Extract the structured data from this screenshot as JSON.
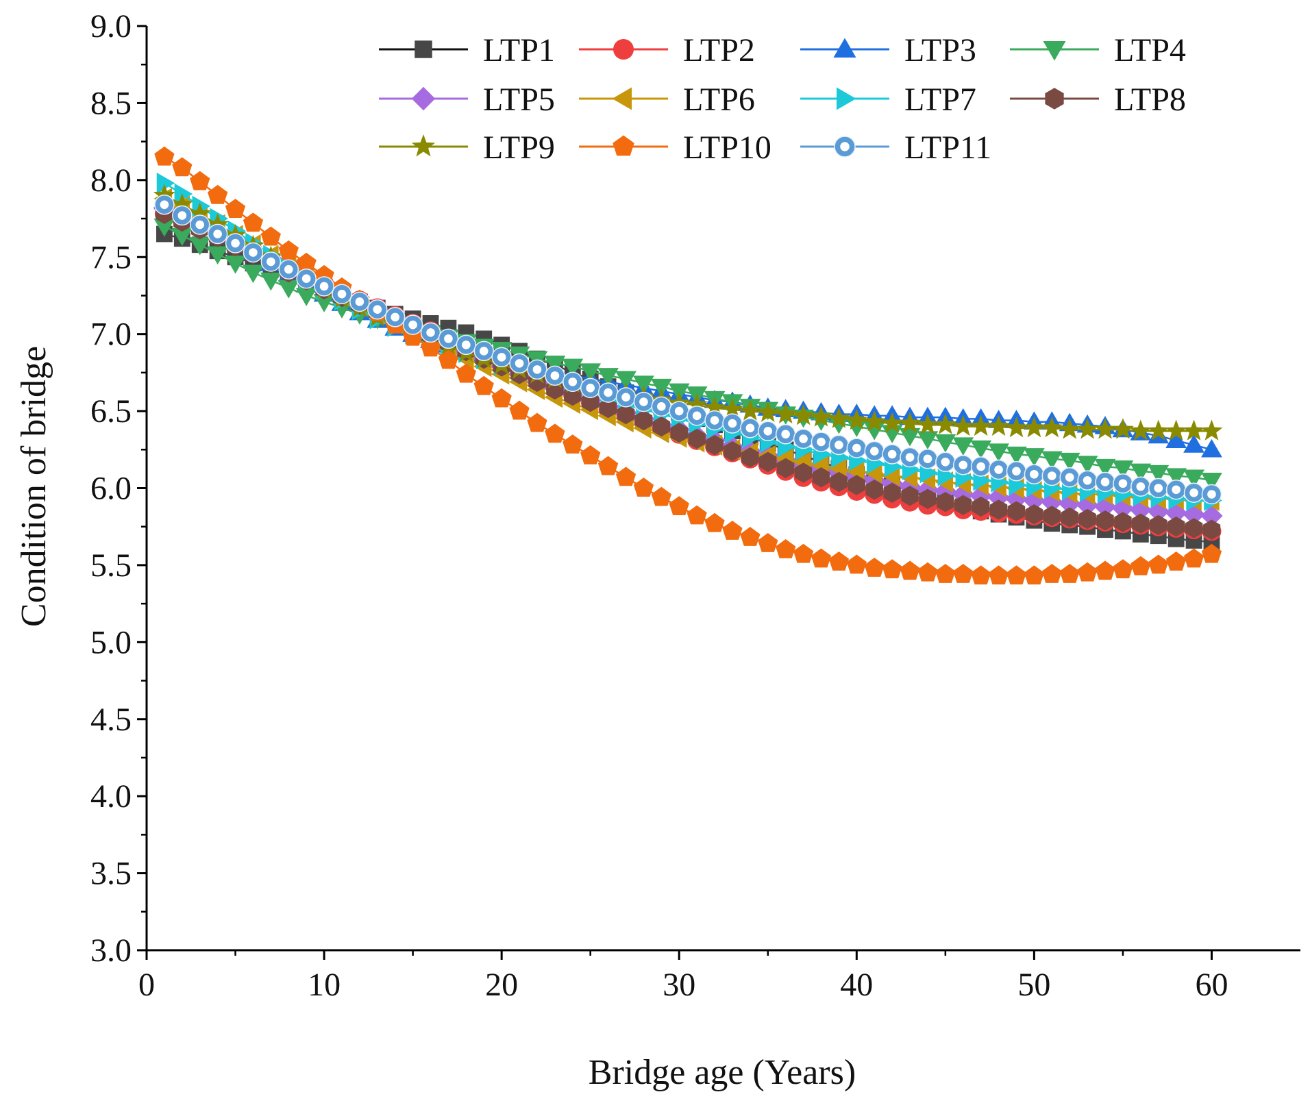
{
  "chart_data": {
    "type": "line",
    "title": "",
    "xlabel": "Bridge age (Years)",
    "ylabel": "Condition of bridge",
    "xlim": [
      0,
      65
    ],
    "ylim": [
      3.0,
      9.0
    ],
    "x_ticks": [
      0,
      10,
      20,
      30,
      40,
      50,
      60
    ],
    "y_ticks": [
      "3.0",
      "3.5",
      "4.0",
      "4.5",
      "5.0",
      "5.5",
      "6.0",
      "6.5",
      "7.0",
      "7.5",
      "8.0",
      "8.5",
      "9.0"
    ],
    "legend_position": "top-right",
    "series": [
      {
        "name": "LTP1",
        "color": "#474747",
        "marker": "square",
        "age_start": 1,
        "age_step": 1,
        "values": [
          7.65,
          7.62,
          7.58,
          7.54,
          7.5,
          7.46,
          7.42,
          7.38,
          7.33,
          7.29,
          7.25,
          7.21,
          7.17,
          7.13,
          7.1,
          7.07,
          7.04,
          7.01,
          6.97,
          6.93,
          6.89,
          6.84,
          6.8,
          6.75,
          6.71,
          6.66,
          6.62,
          6.57,
          6.53,
          6.49,
          6.45,
          6.41,
          6.37,
          6.33,
          6.29,
          6.25,
          6.21,
          6.17,
          6.13,
          6.09,
          6.05,
          6.02,
          5.98,
          5.95,
          5.91,
          5.88,
          5.85,
          5.83,
          5.81,
          5.79,
          5.77,
          5.76,
          5.75,
          5.73,
          5.72,
          5.7,
          5.69,
          5.67,
          5.66,
          5.65
        ]
      },
      {
        "name": "LTP2",
        "color": "#ef3e3e",
        "marker": "circle",
        "age_start": 1,
        "age_step": 1,
        "values": [
          7.78,
          7.74,
          7.69,
          7.64,
          7.59,
          7.54,
          7.49,
          7.44,
          7.38,
          7.33,
          7.27,
          7.22,
          7.17,
          7.12,
          7.07,
          7.02,
          6.97,
          6.92,
          6.86,
          6.81,
          6.76,
          6.71,
          6.66,
          6.61,
          6.56,
          6.51,
          6.47,
          6.43,
          6.39,
          6.35,
          6.31,
          6.27,
          6.23,
          6.19,
          6.15,
          6.11,
          6.07,
          6.04,
          6.01,
          5.98,
          5.96,
          5.93,
          5.91,
          5.89,
          5.88,
          5.86,
          5.85,
          5.84,
          5.83,
          5.82,
          5.81,
          5.8,
          5.79,
          5.78,
          5.77,
          5.76,
          5.75,
          5.74,
          5.73,
          5.72
        ]
      },
      {
        "name": "LTP3",
        "color": "#1f6fe0",
        "marker": "triangle-up",
        "age_start": 1,
        "age_step": 1,
        "values": [
          7.86,
          7.81,
          7.74,
          7.67,
          7.6,
          7.53,
          7.46,
          7.39,
          7.32,
          7.26,
          7.2,
          7.14,
          7.09,
          7.04,
          7.0,
          6.96,
          6.93,
          6.9,
          6.87,
          6.84,
          6.81,
          6.78,
          6.75,
          6.73,
          6.71,
          6.69,
          6.67,
          6.65,
          6.63,
          6.61,
          6.59,
          6.57,
          6.56,
          6.54,
          6.52,
          6.51,
          6.5,
          6.49,
          6.48,
          6.48,
          6.47,
          6.47,
          6.46,
          6.46,
          6.46,
          6.45,
          6.45,
          6.44,
          6.44,
          6.43,
          6.43,
          6.42,
          6.41,
          6.4,
          6.38,
          6.36,
          6.34,
          6.31,
          6.28,
          6.25
        ]
      },
      {
        "name": "LTP4",
        "color": "#3aaa5c",
        "marker": "triangle-down",
        "age_start": 1,
        "age_step": 1,
        "values": [
          7.7,
          7.64,
          7.58,
          7.52,
          7.46,
          7.4,
          7.35,
          7.3,
          7.25,
          7.21,
          7.17,
          7.13,
          7.1,
          7.07,
          7.04,
          7.01,
          6.98,
          6.95,
          6.92,
          6.9,
          6.87,
          6.84,
          6.81,
          6.79,
          6.76,
          6.73,
          6.71,
          6.68,
          6.66,
          6.63,
          6.61,
          6.58,
          6.56,
          6.53,
          6.51,
          6.48,
          6.46,
          6.44,
          6.42,
          6.4,
          6.38,
          6.36,
          6.34,
          6.32,
          6.3,
          6.28,
          6.26,
          6.24,
          6.22,
          6.21,
          6.19,
          6.18,
          6.16,
          6.14,
          6.13,
          6.11,
          6.1,
          6.08,
          6.07,
          6.05
        ]
      },
      {
        "name": "LTP5",
        "color": "#a66be0",
        "marker": "diamond",
        "age_start": 1,
        "age_step": 1,
        "values": [
          7.82,
          7.78,
          7.73,
          7.67,
          7.61,
          7.55,
          7.49,
          7.43,
          7.37,
          7.31,
          7.25,
          7.19,
          7.14,
          7.09,
          7.04,
          6.99,
          6.94,
          6.89,
          6.84,
          6.79,
          6.74,
          6.69,
          6.65,
          6.61,
          6.57,
          6.53,
          6.49,
          6.45,
          6.41,
          6.38,
          6.34,
          6.31,
          6.27,
          6.24,
          6.21,
          6.18,
          6.15,
          6.12,
          6.1,
          6.07,
          6.05,
          6.03,
          6.01,
          5.99,
          5.98,
          5.96,
          5.95,
          5.94,
          5.93,
          5.92,
          5.91,
          5.9,
          5.89,
          5.88,
          5.87,
          5.86,
          5.85,
          5.84,
          5.83,
          5.82
        ]
      },
      {
        "name": "LTP6",
        "color": "#c8960a",
        "marker": "triangle-left",
        "age_start": 1,
        "age_step": 1,
        "values": [
          7.88,
          7.83,
          7.77,
          7.71,
          7.64,
          7.58,
          7.51,
          7.45,
          7.38,
          7.32,
          7.25,
          7.19,
          7.13,
          7.07,
          7.01,
          6.95,
          6.9,
          6.84,
          6.79,
          6.74,
          6.69,
          6.64,
          6.59,
          6.55,
          6.51,
          6.47,
          6.43,
          6.39,
          6.36,
          6.33,
          6.3,
          6.28,
          6.25,
          6.23,
          6.21,
          6.19,
          6.17,
          6.15,
          6.13,
          6.11,
          6.1,
          6.08,
          6.07,
          6.06,
          6.04,
          6.03,
          6.02,
          6.01,
          6.0,
          5.99,
          5.98,
          5.97,
          5.96,
          5.96,
          5.95,
          5.94,
          5.93,
          5.93,
          5.92,
          5.92
        ]
      },
      {
        "name": "LTP7",
        "color": "#1cc9d9",
        "marker": "triangle-right",
        "age_start": 1,
        "age_step": 1,
        "values": [
          7.98,
          7.91,
          7.83,
          7.75,
          7.67,
          7.59,
          7.51,
          7.43,
          7.36,
          7.29,
          7.22,
          7.16,
          7.1,
          7.05,
          7.0,
          6.96,
          6.92,
          6.88,
          6.84,
          6.8,
          6.76,
          6.72,
          6.68,
          6.64,
          6.61,
          6.57,
          6.54,
          6.51,
          6.48,
          6.45,
          6.42,
          6.39,
          6.36,
          6.33,
          6.3,
          6.27,
          6.25,
          6.22,
          6.2,
          6.18,
          6.16,
          6.14,
          6.12,
          6.1,
          6.08,
          6.07,
          6.05,
          6.04,
          6.02,
          6.01,
          6.0,
          5.99,
          5.98,
          5.97,
          5.96,
          5.95,
          5.94,
          5.93,
          5.92,
          5.92
        ]
      },
      {
        "name": "LTP8",
        "color": "#7a4a42",
        "marker": "hexagon",
        "age_start": 1,
        "age_step": 1,
        "values": [
          7.78,
          7.73,
          7.68,
          7.63,
          7.57,
          7.52,
          7.46,
          7.4,
          7.35,
          7.29,
          7.24,
          7.19,
          7.14,
          7.09,
          7.04,
          6.99,
          6.94,
          6.89,
          6.84,
          6.79,
          6.74,
          6.69,
          6.64,
          6.6,
          6.56,
          6.52,
          6.48,
          6.44,
          6.4,
          6.36,
          6.32,
          6.28,
          6.24,
          6.2,
          6.17,
          6.13,
          6.1,
          6.07,
          6.04,
          6.02,
          5.99,
          5.97,
          5.95,
          5.93,
          5.91,
          5.89,
          5.88,
          5.86,
          5.85,
          5.83,
          5.82,
          5.81,
          5.8,
          5.79,
          5.78,
          5.77,
          5.76,
          5.75,
          5.74,
          5.73
        ]
      },
      {
        "name": "LTP9",
        "color": "#8a8a00",
        "marker": "star",
        "age_start": 1,
        "age_step": 1,
        "values": [
          7.9,
          7.84,
          7.78,
          7.71,
          7.64,
          7.57,
          7.5,
          7.43,
          7.36,
          7.29,
          7.23,
          7.17,
          7.11,
          7.06,
          7.01,
          6.96,
          6.92,
          6.88,
          6.84,
          6.8,
          6.77,
          6.74,
          6.71,
          6.68,
          6.66,
          6.63,
          6.61,
          6.59,
          6.57,
          6.55,
          6.54,
          6.52,
          6.51,
          6.5,
          6.49,
          6.48,
          6.47,
          6.46,
          6.45,
          6.44,
          6.43,
          6.42,
          6.42,
          6.41,
          6.41,
          6.4,
          6.4,
          6.4,
          6.39,
          6.39,
          6.39,
          6.38,
          6.38,
          6.38,
          6.38,
          6.37,
          6.37,
          6.37,
          6.37,
          6.37
        ]
      },
      {
        "name": "LTP10",
        "color": "#f26b0f",
        "marker": "pentagon",
        "age_start": 1,
        "age_step": 1,
        "values": [
          8.15,
          8.08,
          7.99,
          7.9,
          7.81,
          7.72,
          7.63,
          7.54,
          7.46,
          7.38,
          7.3,
          7.22,
          7.14,
          7.06,
          6.98,
          6.91,
          6.83,
          6.74,
          6.66,
          6.58,
          6.5,
          6.42,
          6.35,
          6.28,
          6.21,
          6.14,
          6.07,
          6.0,
          5.94,
          5.88,
          5.82,
          5.77,
          5.72,
          5.68,
          5.64,
          5.6,
          5.57,
          5.54,
          5.52,
          5.5,
          5.48,
          5.47,
          5.46,
          5.45,
          5.44,
          5.44,
          5.43,
          5.43,
          5.43,
          5.43,
          5.44,
          5.44,
          5.45,
          5.46,
          5.47,
          5.49,
          5.5,
          5.52,
          5.54,
          5.57
        ]
      },
      {
        "name": "LTP11",
        "color": "#5b9bd5",
        "marker": "bubble",
        "age_start": 1,
        "age_step": 1,
        "values": [
          7.84,
          7.77,
          7.71,
          7.65,
          7.59,
          7.53,
          7.47,
          7.42,
          7.36,
          7.31,
          7.26,
          7.21,
          7.16,
          7.11,
          7.06,
          7.01,
          6.97,
          6.93,
          6.89,
          6.85,
          6.81,
          6.77,
          6.73,
          6.69,
          6.65,
          6.62,
          6.59,
          6.56,
          6.53,
          6.5,
          6.47,
          6.44,
          6.42,
          6.39,
          6.37,
          6.35,
          6.32,
          6.3,
          6.28,
          6.26,
          6.24,
          6.22,
          6.2,
          6.19,
          6.17,
          6.15,
          6.14,
          6.12,
          6.11,
          6.09,
          6.08,
          6.07,
          6.05,
          6.04,
          6.03,
          6.01,
          6.0,
          5.99,
          5.97,
          5.96
        ]
      }
    ]
  }
}
